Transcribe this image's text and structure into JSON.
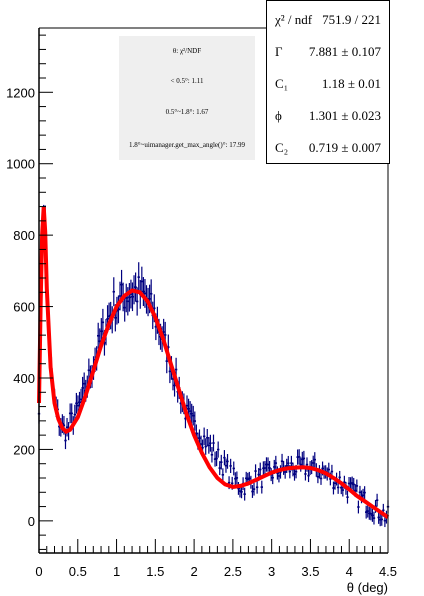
{
  "chart_data": {
    "type": "scatter",
    "xlabel": "θ (deg)",
    "ylabel": "",
    "xlim": [
      0,
      4.5
    ],
    "ylim": [
      -90,
      1380
    ],
    "x_ticks": [
      "0",
      "0.5",
      "1",
      "1.5",
      "2",
      "2.5",
      "3",
      "3.5",
      "4",
      "4.5"
    ],
    "y_ticks": [
      "0",
      "200",
      "400",
      "600",
      "800",
      "1000",
      "1200"
    ],
    "data_color": "#00007f",
    "fit_color": "#ff0000",
    "fit_curve": [
      [
        0.0,
        330
      ],
      [
        0.02,
        600
      ],
      [
        0.04,
        800
      ],
      [
        0.06,
        880
      ],
      [
        0.08,
        810
      ],
      [
        0.1,
        650
      ],
      [
        0.15,
        430
      ],
      [
        0.2,
        330
      ],
      [
        0.25,
        285
      ],
      [
        0.3,
        260
      ],
      [
        0.35,
        250
      ],
      [
        0.4,
        255
      ],
      [
        0.5,
        290
      ],
      [
        0.6,
        350
      ],
      [
        0.7,
        420
      ],
      [
        0.8,
        490
      ],
      [
        0.9,
        550
      ],
      [
        1.0,
        600
      ],
      [
        1.1,
        630
      ],
      [
        1.2,
        645
      ],
      [
        1.3,
        640
      ],
      [
        1.4,
        615
      ],
      [
        1.5,
        570
      ],
      [
        1.6,
        510
      ],
      [
        1.7,
        440
      ],
      [
        1.8,
        370
      ],
      [
        1.9,
        300
      ],
      [
        2.0,
        240
      ],
      [
        2.1,
        190
      ],
      [
        2.2,
        150
      ],
      [
        2.3,
        120
      ],
      [
        2.4,
        102
      ],
      [
        2.5,
        95
      ],
      [
        2.6,
        98
      ],
      [
        2.7,
        105
      ],
      [
        2.8,
        115
      ],
      [
        2.9,
        125
      ],
      [
        3.0,
        135
      ],
      [
        3.1,
        142
      ],
      [
        3.2,
        147
      ],
      [
        3.3,
        149
      ],
      [
        3.4,
        150
      ],
      [
        3.5,
        148
      ],
      [
        3.6,
        142
      ],
      [
        3.7,
        133
      ],
      [
        3.8,
        120
      ],
      [
        3.9,
        105
      ],
      [
        4.0,
        88
      ],
      [
        4.1,
        70
      ],
      [
        4.2,
        55
      ],
      [
        4.3,
        40
      ],
      [
        4.4,
        25
      ],
      [
        4.5,
        10
      ]
    ]
  },
  "stats_box": [
    {
      "name": "χ² / ndf",
      "value": "751.9 / 221"
    },
    {
      "name": "Γ",
      "value": "7.881 ± 0.107"
    },
    {
      "name": "C₁",
      "value": "1.18 ± 0.01"
    },
    {
      "name": "ϕ",
      "value": "1.301 ± 0.023"
    },
    {
      "name": "C₂",
      "value": "0.719 ± 0.007"
    }
  ],
  "note_box": {
    "header": "θ: χ²/NDF",
    "line1": "< 0.5°: 1.11",
    "line2": "0.5°~1.8°: 1.67",
    "line3": "1.8°~uimanager.get_max_angle()°: 17.99"
  }
}
